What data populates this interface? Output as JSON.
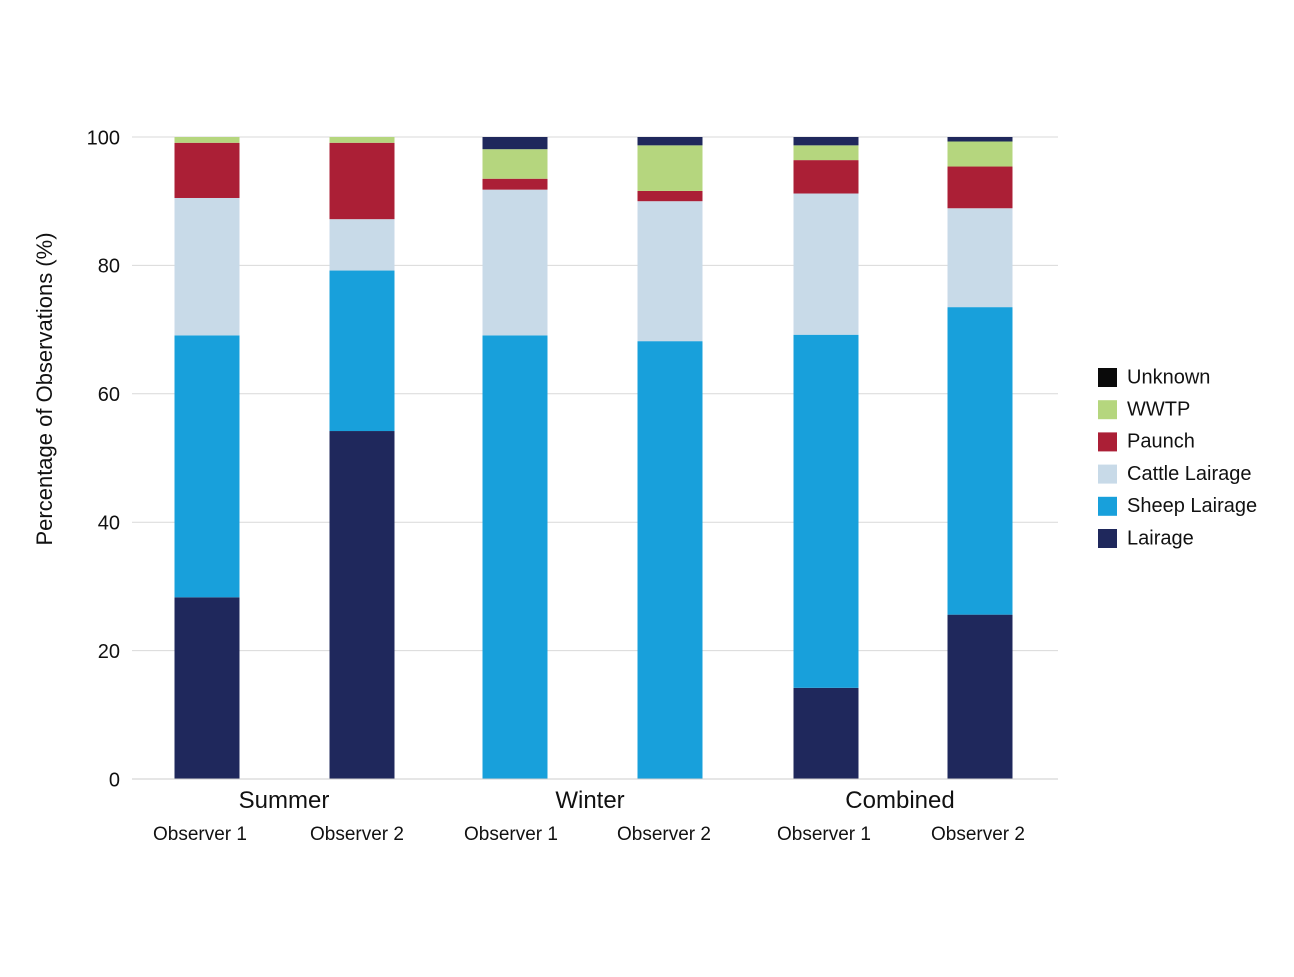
{
  "chart_data": {
    "type": "bar",
    "stacked": true,
    "ylabel": "Percentage of Observations (%)",
    "ylim": [
      0,
      100
    ],
    "yticks": [
      "0",
      "20",
      "40",
      "60",
      "80",
      "100"
    ],
    "grid": true,
    "legend_position": "right",
    "groups": [
      {
        "label": "Summer",
        "bars": [
          "Observer 1",
          "Observer 2"
        ]
      },
      {
        "label": "Winter",
        "bars": [
          "Observer 1",
          "Observer 2"
        ]
      },
      {
        "label": "Combined",
        "bars": [
          "Observer 1",
          "Observer 2"
        ]
      }
    ],
    "series": [
      {
        "name": "Lairage",
        "color": "#1f285c",
        "values": [
          28.3,
          54.2,
          0,
          0,
          14.2,
          25.6
        ]
      },
      {
        "name": "Sheep Lairage",
        "color": "#18a0db",
        "values": [
          40.8,
          25.0,
          69.1,
          68.2,
          55.0,
          47.9
        ]
      },
      {
        "name": "Cattle Lairage",
        "color": "#c8dae8",
        "values": [
          21.4,
          8.0,
          22.7,
          21.8,
          22.0,
          15.4
        ]
      },
      {
        "name": "Paunch",
        "color": "#ab1f36",
        "values": [
          8.6,
          11.9,
          1.7,
          1.6,
          5.2,
          6.5
        ]
      },
      {
        "name": "WWTP",
        "color": "#b5d67e",
        "values": [
          0.9,
          0.9,
          4.6,
          7.1,
          2.3,
          3.9
        ]
      },
      {
        "name": "Unknown",
        "color": "#0a0a0a",
        "values": [
          0,
          0,
          0,
          0,
          0,
          0
        ]
      }
    ],
    "overlay": {
      "color": "#1f285c",
      "values": [
        0,
        0,
        1.9,
        1.3,
        1.3,
        0.7
      ]
    }
  }
}
